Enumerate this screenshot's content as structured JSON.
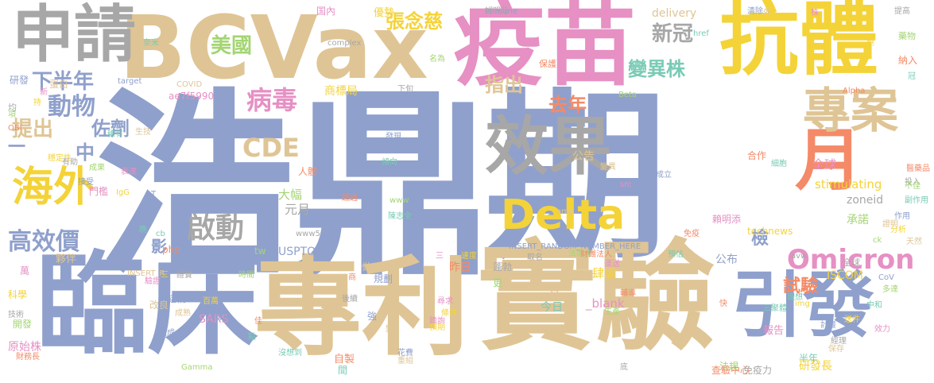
{
  "title": "Word cloud",
  "palette": {
    "blue": "#8fa0cc",
    "tan": "#dfc595",
    "pink": "#e690c4",
    "yellow": "#f4d339",
    "gray": "#a7a7a7",
    "green": "#a4d574",
    "orange": "#f48a67",
    "teal": "#79cbb5"
  },
  "words": [
    {
      "text": "浩鼎",
      "color": "blue",
      "weight": 240
    },
    {
      "text": "期",
      "color": "blue",
      "weight": 200
    },
    {
      "text": "實驗",
      "color": "tan",
      "weight": 115
    },
    {
      "text": "臨床",
      "color": "blue",
      "weight": 120
    },
    {
      "text": "專利",
      "color": "tan",
      "weight": 118
    },
    {
      "text": "BCVax",
      "color": "tan",
      "weight": 105
    },
    {
      "text": "疫苗",
      "color": "pink",
      "weight": 100
    },
    {
      "text": "抗體",
      "color": "yellow",
      "weight": 90
    },
    {
      "text": "效果",
      "color": "gray",
      "weight": 78
    },
    {
      "text": "引發",
      "color": "blue",
      "weight": 78
    },
    {
      "text": "申請",
      "color": "gray",
      "weight": 68
    },
    {
      "text": "月",
      "color": "orange",
      "weight": 70
    },
    {
      "text": "專案",
      "color": "tan",
      "weight": 52
    },
    {
      "text": "Delta",
      "color": "yellow",
      "weight": 48
    },
    {
      "text": "海外",
      "color": "yellow",
      "weight": 48
    },
    {
      "text": "Omicron",
      "color": "pink",
      "weight": 30
    },
    {
      "text": "病毒",
      "color": "pink",
      "weight": 30
    },
    {
      "text": "動物",
      "color": "blue",
      "weight": 28
    },
    {
      "text": "CDE",
      "color": "tan",
      "weight": 28
    },
    {
      "text": "啟動",
      "color": "gray",
      "weight": 32
    },
    {
      "text": "高效價",
      "color": "blue",
      "weight": 26
    },
    {
      "text": "下半年",
      "color": "blue",
      "weight": 24
    },
    {
      "text": "美國",
      "color": "green",
      "weight": 24
    },
    {
      "text": "新冠",
      "color": "gray",
      "weight": 24
    },
    {
      "text": "變異株",
      "color": "teal",
      "weight": 24
    },
    {
      "text": "去年",
      "color": "orange",
      "weight": 24
    },
    {
      "text": "張念慈",
      "color": "yellow",
      "weight": 24
    },
    {
      "text": "提出",
      "color": "tan",
      "weight": 24
    },
    {
      "text": "指出",
      "color": "tan",
      "weight": 22
    },
    {
      "text": "佐劑",
      "color": "blue",
      "weight": 22
    },
    {
      "text": "試驗",
      "color": "orange",
      "weight": 22
    },
    {
      "text": "檢",
      "color": "blue",
      "weight": 22
    },
    {
      "text": "中",
      "color": "blue",
      "weight": 22
    },
    {
      "text": "影",
      "color": "blue",
      "weight": 20
    },
    {
      "text": "一",
      "color": "blue",
      "weight": 20
    }
  ],
  "small_words": [
    "immune",
    "delivery",
    "国內",
    "優勢",
    "complex",
    "名為",
    "保護",
    "奈米",
    "target",
    "COVID",
    "ae7f5990",
    "商標局",
    "下旬",
    "Beta",
    "Alpha",
    "href",
    "清除",
    "外",
    "株",
    "劑",
    "提高",
    "藥物",
    "納入",
    "冠",
    "研發",
    "蛋白",
    "新",
    "持",
    "均",
    "項",
    "OBI",
    "稀有",
    "接受",
    "生技",
    "門檻",
    "穩定性",
    "有助",
    "成果",
    "人體",
    "傾向",
    "發現",
    "公告",
    "全球",
    "stimulating",
    "zoneid",
    "承諾",
    "合作",
    "細胞",
    "成立",
    "變異",
    "表達",
    "IgG",
    "元月",
    "大幅",
    "超過",
    "陳志全",
    "INSERT_RANDOM_NUMBER_HERE",
    "amp",
    "賴明添",
    "technews",
    "www5",
    "tw",
    "php",
    "cb",
    "USPTO",
    "夥伴",
    "萬",
    "ISCOM",
    "全球",
    "www",
    "免疫",
    "中和",
    "公布",
    "支",
    "_blank",
    "肆虐",
    "蓬勃",
    "更",
    "昨日",
    "今日",
    "規劃",
    "預計",
    "原始株",
    "科學",
    "技術",
    "開發",
    "自製",
    "間",
    "強",
    "做",
    "三",
    "速度",
    "取名",
    "法說會",
    "財團法人",
    "預估",
    "結構",
    "改良",
    "SARS",
    "百萬",
    "後續",
    "生產",
    "輔導",
    "三聚體",
    "計畫",
    "保存",
    "報告",
    "研發長",
    "免疫力",
    "法規",
    "查驗中心",
    "半年",
    "花費",
    "重組",
    "踏詢",
    "預期",
    "底",
    "Gamma",
    "財務長",
    "沒想到",
    "做成",
    "成熟",
    "效力",
    "送件",
    "經理",
    "多達",
    "快",
    "理想",
    "CoV",
    "天然",
    "運送",
    "分析",
    "投入",
    "不佳",
    "醫藥品",
    "副作用",
    "作用",
    "證明",
    "src",
    "img",
    "avw",
    "ck",
    "佳",
    "點",
    "T",
    "INSERT_R",
    "驗證",
    "三",
    "證實",
    "時間",
    "商",
    "晚",
    "普及",
    "變",
    "尋求",
    "條件",
    "蝴明蓮"
  ]
}
